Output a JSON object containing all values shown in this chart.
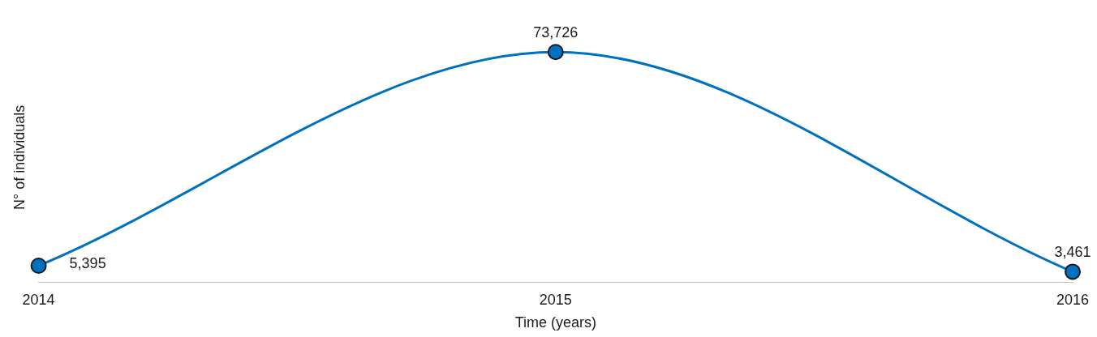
{
  "chart_data": {
    "type": "line",
    "xlabel": "Time (years)",
    "ylabel": "N° of individuals",
    "categories": [
      "2014",
      "2015",
      "2016"
    ],
    "series": [
      {
        "color": "#0070c0",
        "values": [
          5395,
          73726,
          3461
        ],
        "value_labels": [
          "5,395",
          "73,726",
          "3,461"
        ]
      }
    ],
    "marker": "circle",
    "grid": false,
    "legend": false,
    "tick_labels": "x"
  }
}
